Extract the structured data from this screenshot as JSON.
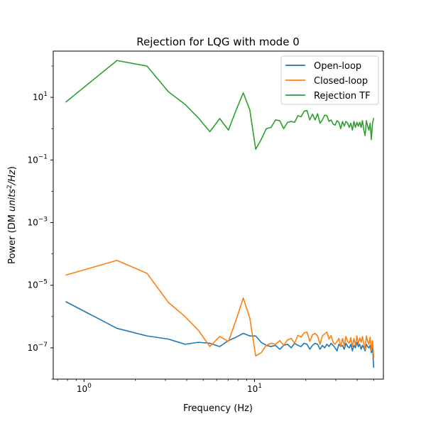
{
  "chart_data": {
    "type": "line",
    "title": "Rejection for LQG with mode 0",
    "xlabel": "Frequency (Hz)",
    "ylabel_parts": [
      "Power (DM ",
      "units",
      "2",
      "/Hz",
      ")"
    ],
    "xscale": "log",
    "yscale": "log",
    "xlim": [
      0.66,
      57
    ],
    "ylim": [
      1e-08,
      300
    ],
    "grid": false,
    "legend_placement": "top-right",
    "xtick_labels": [
      {
        "value": 1,
        "base": "10",
        "exp": "0"
      },
      {
        "value": 10,
        "base": "10",
        "exp": "1"
      }
    ],
    "ytick_labels": [
      {
        "value": 10,
        "base": "10",
        "exp": "1"
      },
      {
        "value": 0.1,
        "base": "10",
        "exp": "−1"
      },
      {
        "value": 0.001,
        "base": "10",
        "exp": "−3"
      },
      {
        "value": 1e-05,
        "base": "10",
        "exp": "−5"
      },
      {
        "value": 1e-07,
        "base": "10",
        "exp": "−7"
      }
    ],
    "series": [
      {
        "name": "Open-loop",
        "color": "#1f77b4",
        "x": [
          0.78,
          1.56,
          2.34,
          3.13,
          3.91,
          4.69,
          5.47,
          6.25,
          7.03,
          7.81,
          8.59,
          9.38,
          10.16,
          10.94,
          11.72,
          12.5,
          13.28,
          14.06,
          14.84,
          15.63,
          16.41,
          17.19,
          17.97,
          18.75,
          19.53,
          20.31,
          21.09,
          21.88,
          22.66,
          23.44,
          24.22,
          25.0,
          25.78,
          26.56,
          27.34,
          28.13,
          28.91,
          29.69,
          30.47,
          31.25,
          32.03,
          32.81,
          33.59,
          34.38,
          35.16,
          35.94,
          36.72,
          37.5,
          38.28,
          39.06,
          39.84,
          40.63,
          41.41,
          42.19,
          42.97,
          43.75,
          44.53,
          45.31,
          46.09,
          46.88,
          47.66,
          48.44,
          49.22,
          50.0
        ],
        "y": [
          3e-06,
          4.2e-07,
          2.4e-07,
          1.9e-07,
          1.3e-07,
          1.5e-07,
          1.4e-07,
          1.1e-07,
          1.7e-07,
          2.2e-07,
          2.9e-07,
          2.4e-07,
          2.4e-07,
          1.5e-07,
          1.2e-07,
          1.1e-07,
          1.2e-07,
          9e-08,
          1.2e-07,
          1.3e-07,
          1e-07,
          1.4e-07,
          1.2e-07,
          1.1e-07,
          1.4e-07,
          1.3e-07,
          9e-08,
          1.2e-07,
          1.4e-07,
          1.3e-07,
          9e-08,
          1.2e-07,
          1e-07,
          1.3e-07,
          1.1e-07,
          1.4e-07,
          1.2e-07,
          1e-07,
          8e-08,
          1.3e-07,
          1.1e-07,
          1.2e-07,
          9e-08,
          1.4e-07,
          1.1e-07,
          1e-07,
          1.3e-07,
          8e-08,
          1.2e-07,
          1e-07,
          1.5e-07,
          1.1e-07,
          1.3e-07,
          9e-08,
          1.2e-07,
          1e-07,
          8e-08,
          1.3e-07,
          1.1e-07,
          1e-07,
          1.2e-07,
          7e-08,
          1.1e-07,
          2.3e-08
        ]
      },
      {
        "name": "Closed-loop",
        "color": "#ff7f0e",
        "x": [
          0.78,
          1.56,
          2.34,
          3.13,
          3.91,
          4.69,
          5.47,
          6.25,
          7.03,
          7.81,
          8.59,
          9.38,
          10.16,
          10.94,
          11.72,
          12.5,
          13.28,
          14.06,
          14.84,
          15.63,
          16.41,
          17.19,
          17.97,
          18.75,
          19.53,
          20.31,
          21.09,
          21.88,
          22.66,
          23.44,
          24.22,
          25.0,
          25.78,
          26.56,
          27.34,
          28.13,
          28.91,
          29.69,
          30.47,
          31.25,
          32.03,
          32.81,
          33.59,
          34.38,
          35.16,
          35.94,
          36.72,
          37.5,
          38.28,
          39.06,
          39.84,
          40.63,
          41.41,
          42.19,
          42.97,
          43.75,
          44.53,
          45.31,
          46.09,
          46.88,
          47.66,
          48.44,
          49.22,
          50.0
        ],
        "y": [
          2.1e-05,
          6.2e-05,
          2.4e-05,
          2.8e-06,
          1e-06,
          3.6e-07,
          1.1e-07,
          2.3e-07,
          1.6e-07,
          8e-07,
          3.9e-06,
          9e-07,
          5.5e-08,
          7e-08,
          1.2e-07,
          1.4e-07,
          1.3e-07,
          1.7e-07,
          1.2e-07,
          1.8e-07,
          2e-07,
          1.4e-07,
          2.5e-07,
          2.2e-07,
          3e-07,
          3.2e-07,
          1.6e-07,
          2.6e-07,
          2.9e-07,
          2.4e-07,
          1.3e-07,
          2.4e-07,
          2.8e-07,
          3.2e-07,
          1.9e-07,
          2.5e-07,
          1.5e-07,
          1.3e-07,
          1.6e-07,
          2e-07,
          1.1e-07,
          2e-07,
          1.2e-07,
          2.3e-07,
          1.6e-07,
          1.4e-07,
          2.1e-07,
          1.1e-07,
          2e-07,
          1.2e-07,
          2.4e-07,
          1.3e-07,
          2.1e-07,
          1.5e-07,
          2.3e-07,
          1.3e-07,
          9e-08,
          2.4e-07,
          1.6e-07,
          1.3e-07,
          2.2e-07,
          8e-08,
          1.7e-07,
          5e-08
        ]
      },
      {
        "name": "Rejection TF",
        "color": "#2ca02c",
        "x": [
          0.78,
          1.56,
          2.34,
          3.13,
          3.91,
          4.69,
          5.47,
          6.25,
          7.03,
          7.81,
          8.59,
          9.38,
          10.16,
          10.94,
          11.72,
          12.5,
          13.28,
          14.06,
          14.84,
          15.63,
          16.41,
          17.19,
          17.97,
          18.75,
          19.53,
          20.31,
          21.09,
          21.88,
          22.66,
          23.44,
          24.22,
          25.0,
          25.78,
          26.56,
          27.34,
          28.13,
          28.91,
          29.69,
          30.47,
          31.25,
          32.03,
          32.81,
          33.59,
          34.38,
          35.16,
          35.94,
          36.72,
          37.5,
          38.28,
          39.06,
          39.84,
          40.63,
          41.41,
          42.19,
          42.97,
          43.75,
          44.53,
          45.31,
          46.09,
          46.88,
          47.66,
          48.44,
          49.22,
          50.0
        ],
        "y": [
          7.0,
          150.0,
          100.0,
          15.0,
          6.0,
          2.2,
          0.8,
          2.1,
          0.9,
          4.0,
          14.0,
          4.0,
          0.22,
          0.45,
          1.0,
          1.1,
          1.9,
          1.8,
          1.0,
          1.6,
          1.7,
          1.6,
          2.6,
          2.4,
          3.6,
          3.8,
          1.9,
          2.9,
          1.9,
          3.0,
          1.5,
          1.9,
          2.7,
          2.6,
          1.7,
          1.9,
          1.4,
          1.3,
          1.8,
          1.6,
          1.0,
          1.7,
          1.2,
          1.7,
          1.5,
          1.1,
          1.5,
          0.9,
          1.7,
          1.1,
          1.6,
          1.2,
          1.6,
          1.1,
          1.8,
          0.9,
          0.6,
          1.8,
          1.2,
          0.9,
          1.5,
          0.45,
          1.5,
          2.2
        ]
      }
    ]
  }
}
